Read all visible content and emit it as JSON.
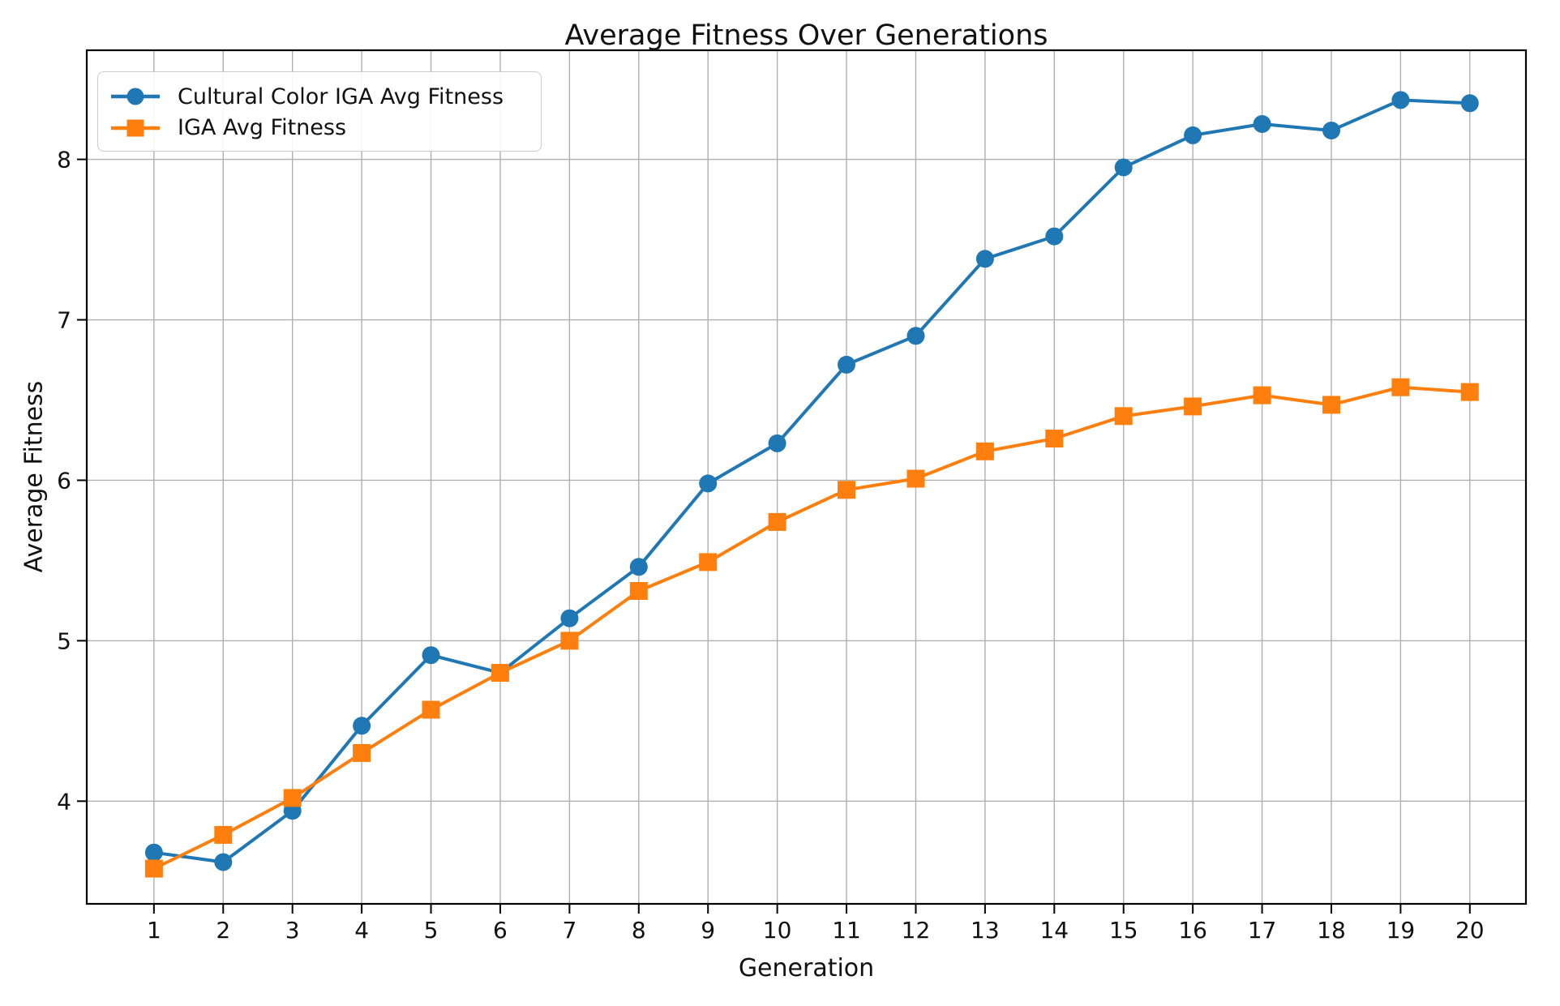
{
  "chart_data": {
    "type": "line",
    "title": "Average Fitness Over Generations",
    "xlabel": "Generation",
    "ylabel": "Average Fitness",
    "x": [
      1,
      2,
      3,
      4,
      5,
      6,
      7,
      8,
      9,
      10,
      11,
      12,
      13,
      14,
      15,
      16,
      17,
      18,
      19,
      20
    ],
    "series": [
      {
        "name": "Cultural Color IGA Avg Fitness",
        "marker": "circle",
        "color": "#1f77b4",
        "values": [
          3.68,
          3.62,
          3.94,
          4.47,
          4.91,
          4.8,
          5.14,
          5.46,
          5.98,
          6.23,
          6.72,
          6.9,
          7.38,
          7.52,
          7.95,
          8.15,
          8.22,
          8.18,
          8.37,
          8.35
        ]
      },
      {
        "name": "IGA Avg Fitness",
        "marker": "square",
        "color": "#ff7f0e",
        "values": [
          3.58,
          3.79,
          4.02,
          4.3,
          4.57,
          4.8,
          5.0,
          5.31,
          5.49,
          5.74,
          5.94,
          6.01,
          6.18,
          6.26,
          6.4,
          6.46,
          6.53,
          6.47,
          6.58,
          6.55
        ]
      }
    ],
    "x_ticks": [
      1,
      2,
      3,
      4,
      5,
      6,
      7,
      8,
      9,
      10,
      11,
      12,
      13,
      14,
      15,
      16,
      17,
      18,
      19,
      20
    ],
    "y_ticks": [
      4,
      5,
      6,
      7,
      8
    ],
    "xlim": [
      0.03,
      20.81
    ],
    "ylim": [
      3.36,
      8.68
    ],
    "grid": true,
    "legend_position": "upper left",
    "grid_color": "#b0b0b0",
    "spine_color": "#000000",
    "background_color": "#ffffff"
  }
}
